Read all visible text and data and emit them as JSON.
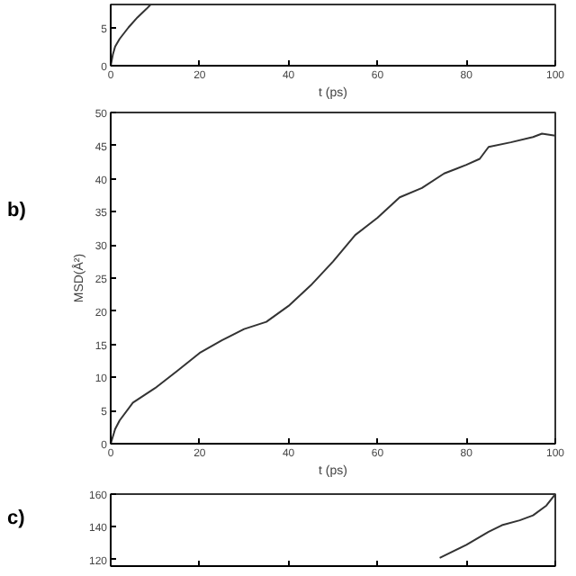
{
  "chart_data": [
    {
      "type": "line",
      "xlabel": "t (ps)",
      "xlim": [
        0,
        100
      ],
      "xticks": [
        0,
        20,
        40,
        60,
        80,
        100
      ],
      "ylim": [
        0,
        8
      ],
      "yticks": [
        0,
        5
      ],
      "grid": false,
      "x": [
        0,
        0.5,
        1,
        2,
        4,
        6,
        8,
        9
      ],
      "series": [
        {
          "color": "#333333",
          "values": [
            0,
            1.5,
            2.5,
            3.5,
            5,
            6.3,
            7.4,
            8
          ]
        }
      ]
    },
    {
      "type": "line",
      "title": "b)",
      "xlabel": "t (ps)",
      "ylabel": "MSD(Å²)",
      "xlim": [
        0,
        100
      ],
      "xticks": [
        0,
        20,
        40,
        60,
        80,
        100
      ],
      "ylim": [
        0,
        50
      ],
      "yticks": [
        0,
        5,
        10,
        15,
        20,
        25,
        30,
        35,
        40,
        45,
        50
      ],
      "grid": false,
      "x": [
        0,
        1,
        2,
        5,
        10,
        15,
        20,
        25,
        30,
        35,
        40,
        45,
        50,
        55,
        60,
        65,
        70,
        75,
        80,
        83,
        85,
        90,
        95,
        97,
        100
      ],
      "series": [
        {
          "color": "#333333",
          "values": [
            0,
            2.2,
            3.5,
            6.2,
            8.4,
            11,
            13.7,
            15.6,
            17.3,
            18.4,
            20.8,
            23.9,
            27.5,
            31.5,
            34.1,
            37.2,
            38.6,
            40.8,
            42.1,
            43,
            44.8,
            45.5,
            46.3,
            46.8,
            46.5
          ]
        }
      ]
    },
    {
      "type": "line",
      "title": "c)",
      "xlim": [
        0,
        100
      ],
      "xticks": [
        0,
        20,
        40,
        60,
        80,
        100
      ],
      "ylim": [
        116,
        160
      ],
      "yticks": [
        120,
        140,
        160
      ],
      "grid": false,
      "tick_labels": "y",
      "x": [
        74,
        80,
        85,
        88,
        92,
        95,
        98,
        100
      ],
      "series": [
        {
          "color": "#333333",
          "values": [
            121,
            129,
            137,
            141,
            144,
            147,
            153,
            160
          ]
        }
      ]
    }
  ]
}
